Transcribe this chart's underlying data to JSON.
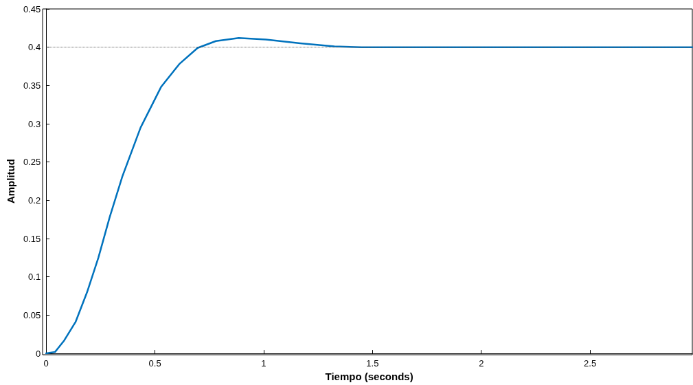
{
  "chart_data": {
    "type": "line",
    "xlabel": "Tiempo (seconds)",
    "ylabel": "Amplitud",
    "x": [
      0,
      0.041,
      0.083,
      0.135,
      0.188,
      0.24,
      0.292,
      0.35,
      0.434,
      0.528,
      0.612,
      0.696,
      0.78,
      0.885,
      1.01,
      1.168,
      1.325,
      1.45,
      2.97
    ],
    "series": [
      {
        "color": "#0072bd",
        "values": [
          0,
          0.002,
          0.017,
          0.041,
          0.08,
          0.125,
          0.178,
          0.231,
          0.295,
          0.348,
          0.378,
          0.399,
          0.408,
          0.412,
          0.41,
          0.405,
          0.401,
          0.4,
          0.4
        ]
      }
    ],
    "xlim": [
      0,
      2.97
    ],
    "xticks": [
      0,
      0.5,
      1,
      1.5,
      2,
      2.5
    ],
    "ylim": [
      0,
      0.45
    ],
    "yticks": [
      0,
      0.05,
      0.1,
      0.15,
      0.2,
      0.25,
      0.3,
      0.35,
      0.4,
      0.45
    ],
    "ref_lines": [
      {
        "axis": "y",
        "value": 0.4,
        "color": "#555555",
        "line_style": "dotted"
      }
    ],
    "grid": false,
    "marker": "none",
    "line_style": "solid"
  }
}
